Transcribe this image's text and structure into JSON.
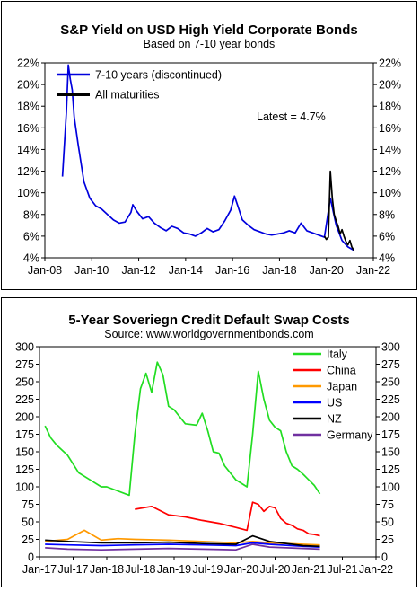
{
  "chart_data": [
    {
      "type": "line",
      "title": "S&P Yield on USD High Yield Corporate Bonds",
      "subtitle": "Based on 7-10 year bonds",
      "ylim": [
        4,
        22
      ],
      "y_ticks": [
        "4%",
        "6%",
        "8%",
        "10%",
        "12%",
        "14%",
        "16%",
        "18%",
        "20%",
        "22%"
      ],
      "x_ticks": [
        "Jan-08",
        "Jan-10",
        "Jan-12",
        "Jan-14",
        "Jan-16",
        "Jan-18",
        "Jan-20",
        "Jan-22"
      ],
      "annotation": "Latest = 4.7%",
      "legend_position": "top-left",
      "grid": false,
      "series": [
        {
          "name": "7-10 years (discontinued)",
          "color": "#0000dd",
          "x": [
            "2008-10",
            "2008-12",
            "2009-01",
            "2009-02",
            "2009-03",
            "2009-04",
            "2009-06",
            "2009-09",
            "2009-12",
            "2010-03",
            "2010-06",
            "2010-09",
            "2010-12",
            "2011-03",
            "2011-06",
            "2011-09",
            "2011-10",
            "2011-12",
            "2012-03",
            "2012-06",
            "2012-09",
            "2012-12",
            "2013-03",
            "2013-06",
            "2013-09",
            "2013-12",
            "2014-03",
            "2014-06",
            "2014-09",
            "2014-12",
            "2015-03",
            "2015-06",
            "2015-09",
            "2015-12",
            "2016-02",
            "2016-04",
            "2016-06",
            "2016-09",
            "2016-12",
            "2017-03",
            "2017-06",
            "2017-09",
            "2017-12",
            "2018-03",
            "2018-06",
            "2018-09",
            "2018-12",
            "2019-03",
            "2019-06",
            "2019-09",
            "2019-12",
            "2020-03",
            "2020-06",
            "2020-09",
            "2020-12",
            "2021-03"
          ],
          "y": [
            11.5,
            17.5,
            21.8,
            20.5,
            19.5,
            17.0,
            14.5,
            11.0,
            9.5,
            8.8,
            8.5,
            8.0,
            7.5,
            7.2,
            7.3,
            8.2,
            8.9,
            8.3,
            7.6,
            7.8,
            7.2,
            6.8,
            6.5,
            6.9,
            6.7,
            6.3,
            6.2,
            6.0,
            6.3,
            6.7,
            6.4,
            6.6,
            7.4,
            8.4,
            9.7,
            8.6,
            7.5,
            7.0,
            6.6,
            6.4,
            6.2,
            6.1,
            6.2,
            6.3,
            6.5,
            6.3,
            7.2,
            6.5,
            6.3,
            6.1,
            5.9,
            9.5,
            7.0,
            5.6,
            5.0,
            4.7
          ]
        },
        {
          "name": "All maturities",
          "color": "#000000",
          "x": [
            "2019-12",
            "2020-01",
            "2020-02",
            "2020-03",
            "2020-04",
            "2020-05",
            "2020-06",
            "2020-07",
            "2020-08",
            "2020-09",
            "2020-10",
            "2020-11",
            "2020-12",
            "2021-01",
            "2021-02",
            "2021-03"
          ],
          "y": [
            6.0,
            5.7,
            5.9,
            12.0,
            9.5,
            8.0,
            7.4,
            6.9,
            6.2,
            6.6,
            6.0,
            5.5,
            5.2,
            5.6,
            5.0,
            4.7
          ]
        }
      ]
    },
    {
      "type": "line",
      "title": "5-Year Soveriegn Credit Default Swap Costs",
      "subtitle": "Source: www.worldgovernmentbonds.com",
      "ylim": [
        0,
        300
      ],
      "y_ticks": [
        "0",
        "25",
        "50",
        "75",
        "100",
        "125",
        "150",
        "175",
        "200",
        "225",
        "250",
        "275",
        "300"
      ],
      "x_ticks": [
        "Jan-17",
        "Jul-17",
        "Jan-18",
        "Jul-18",
        "Jan-19",
        "Jul-19",
        "Jan-20",
        "Jul-20",
        "Jan-21",
        "Jul-21",
        "Jan-22"
      ],
      "legend_position": "top-right",
      "grid": false,
      "series": [
        {
          "name": "Italy",
          "color": "#22dd22",
          "x": [
            "2017-02",
            "2017-03",
            "2017-04",
            "2017-06",
            "2017-08",
            "2017-10",
            "2017-12",
            "2018-01",
            "2018-05",
            "2018-06",
            "2018-07",
            "2018-08",
            "2018-09",
            "2018-10",
            "2018-11",
            "2018-12",
            "2019-01",
            "2019-02",
            "2019-03",
            "2019-05",
            "2019-06",
            "2019-07",
            "2019-08",
            "2019-09",
            "2019-10",
            "2019-12",
            "2020-01",
            "2020-02",
            "2020-03",
            "2020-04",
            "2020-05",
            "2020-06",
            "2020-07",
            "2020-08",
            "2020-09",
            "2020-10",
            "2020-11",
            "2020-12",
            "2021-01",
            "2021-02",
            "2021-03"
          ],
          "y": [
            187,
            170,
            160,
            145,
            120,
            110,
            100,
            100,
            88,
            175,
            240,
            262,
            235,
            278,
            260,
            215,
            210,
            200,
            190,
            188,
            205,
            180,
            150,
            148,
            130,
            110,
            105,
            100,
            175,
            265,
            225,
            195,
            185,
            180,
            150,
            130,
            125,
            118,
            110,
            102,
            90
          ]
        },
        {
          "name": "China",
          "color": "#ff0000",
          "x": [
            "2018-06",
            "2018-09",
            "2018-12",
            "2019-03",
            "2019-06",
            "2019-09",
            "2019-12",
            "2020-01",
            "2020-02",
            "2020-03",
            "2020-04",
            "2020-05",
            "2020-06",
            "2020-07",
            "2020-08",
            "2020-09",
            "2020-10",
            "2020-11",
            "2020-12",
            "2021-01",
            "2021-02",
            "2021-03"
          ],
          "y": [
            68,
            72,
            60,
            57,
            52,
            48,
            42,
            40,
            38,
            78,
            75,
            65,
            72,
            70,
            55,
            48,
            45,
            40,
            38,
            33,
            32,
            30
          ]
        },
        {
          "name": "Japan",
          "color": "#ff9900",
          "x": [
            "2017-02",
            "2017-06",
            "2017-09",
            "2017-12",
            "2018-03",
            "2018-06",
            "2018-12",
            "2019-06",
            "2019-12",
            "2020-03",
            "2020-06",
            "2020-12",
            "2021-03"
          ],
          "y": [
            22,
            25,
            38,
            24,
            26,
            25,
            24,
            22,
            20,
            22,
            20,
            18,
            17
          ]
        },
        {
          "name": "US",
          "color": "#0000ff",
          "x": [
            "2017-02",
            "2017-06",
            "2017-12",
            "2018-06",
            "2018-12",
            "2019-06",
            "2019-12",
            "2020-03",
            "2020-06",
            "2020-12",
            "2021-03"
          ],
          "y": [
            18,
            17,
            16,
            17,
            18,
            17,
            16,
            20,
            18,
            15,
            14
          ]
        },
        {
          "name": "NZ",
          "color": "#000000",
          "x": [
            "2017-02",
            "2017-06",
            "2017-12",
            "2018-06",
            "2018-12",
            "2019-06",
            "2019-12",
            "2020-03",
            "2020-06",
            "2020-12",
            "2021-03"
          ],
          "y": [
            24,
            22,
            20,
            20,
            21,
            19,
            18,
            30,
            22,
            16,
            15
          ]
        },
        {
          "name": "Germany",
          "color": "#7030a0",
          "x": [
            "2017-02",
            "2017-06",
            "2017-12",
            "2018-06",
            "2018-12",
            "2019-06",
            "2019-12",
            "2020-03",
            "2020-06",
            "2020-12",
            "2021-03"
          ],
          "y": [
            13,
            11,
            10,
            11,
            12,
            11,
            10,
            18,
            14,
            12,
            11
          ]
        }
      ]
    }
  ]
}
